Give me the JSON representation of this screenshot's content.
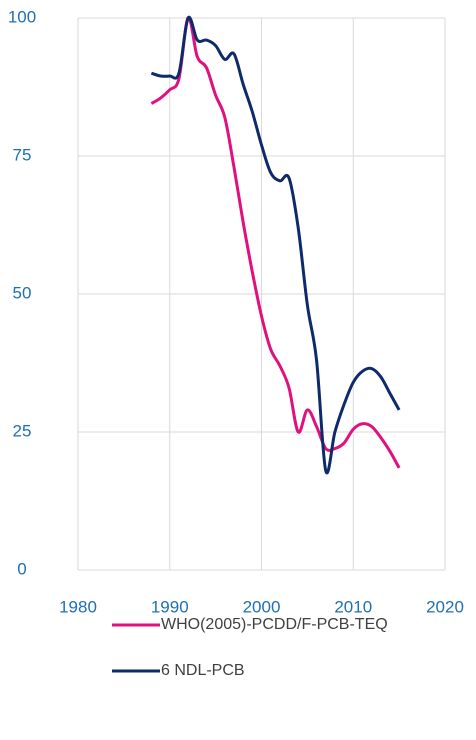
{
  "chart_data": {
    "type": "line",
    "x": [
      1988,
      1989,
      1990,
      1991,
      1992,
      1993,
      1994,
      1995,
      1996,
      1997,
      1998,
      1999,
      2000,
      2001,
      2002,
      2003,
      2004,
      2005,
      2006,
      2007,
      2008,
      2009,
      2010,
      2011,
      2012,
      2013,
      2014,
      2015
    ],
    "series": [
      {
        "name": "WHO(2005)-PCDD/F-PCB-TEQ",
        "color": "#e0117f",
        "values": [
          84.5,
          85.5,
          87,
          89,
          100,
          93,
          91,
          86,
          82,
          73,
          63,
          54,
          46,
          40,
          37,
          33,
          25,
          29,
          26,
          22,
          22,
          23,
          25.5,
          26.5,
          26,
          24,
          21.5,
          18.5
        ]
      },
      {
        "name": "6 NDL-PCB",
        "color": "#0d2a6b",
        "values": [
          90,
          89.5,
          89.5,
          90,
          100,
          96,
          96,
          95,
          92.5,
          93.5,
          88,
          83,
          77,
          72,
          70.5,
          71,
          62,
          48,
          38,
          18,
          25,
          30,
          34,
          36,
          36.5,
          35,
          32,
          29
        ]
      }
    ],
    "xlim": [
      1980,
      2020
    ],
    "xticks": [
      1980,
      1990,
      2000,
      2010,
      2020
    ],
    "ylim": [
      0,
      100
    ],
    "yticks": [
      0,
      25,
      50,
      75,
      100
    ],
    "grid": true
  }
}
